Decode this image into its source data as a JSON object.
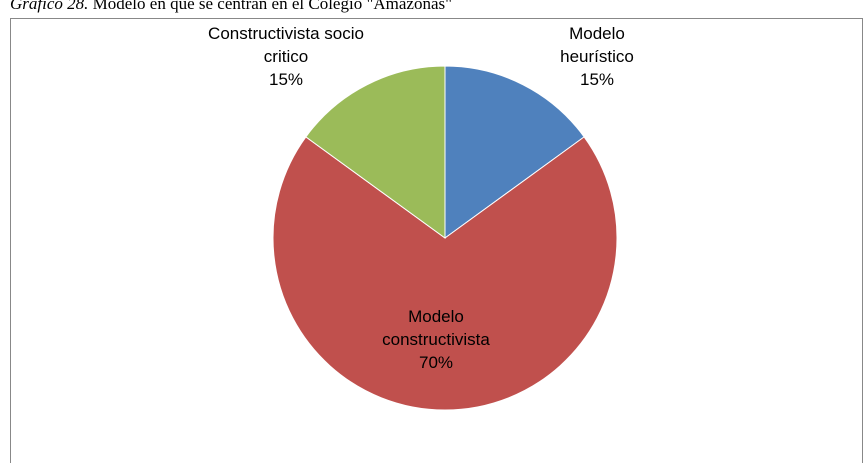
{
  "caption_label": "Gráfico 28.",
  "chart_data": {
    "type": "pie",
    "title": "Modelo en que se centran en el Colegio \"Amazonas\"",
    "categories": [
      "Modelo heurístico",
      "Modelo constructivista",
      "Constructivista socio critico"
    ],
    "values": [
      15,
      70,
      15
    ],
    "value_labels": [
      "15%",
      "70%",
      "15%"
    ],
    "colors": [
      "#4f81bd",
      "#c0504d",
      "#9bbb59"
    ]
  }
}
